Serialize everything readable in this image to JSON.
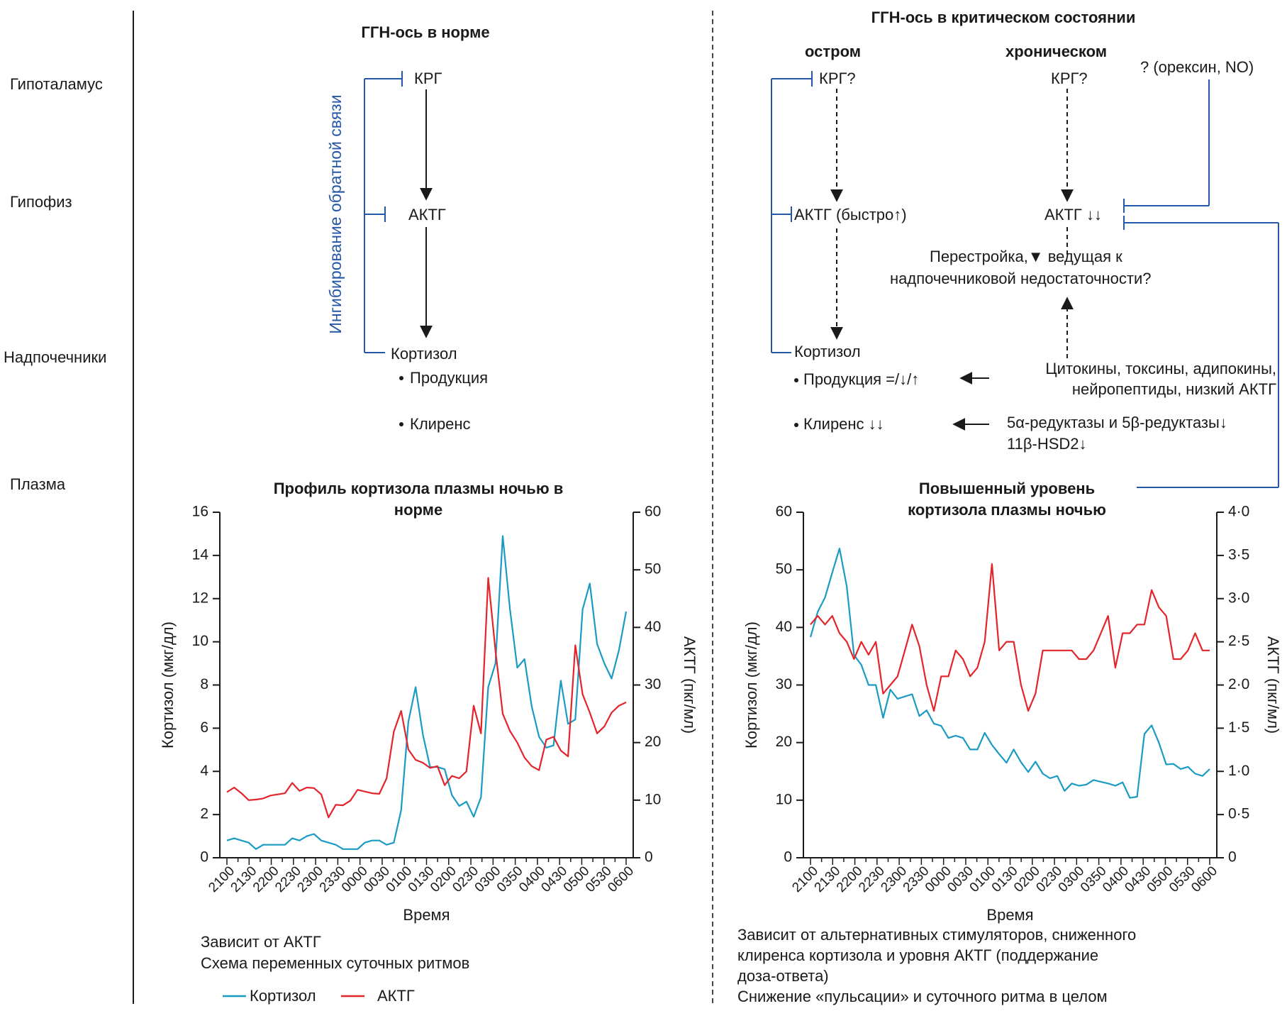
{
  "levels": {
    "hypothalamus": "Гипоталамус",
    "pituitary": "Гипофиз",
    "adrenal": "Надпочечники",
    "plasma": "Плазма"
  },
  "normal": {
    "title": "ГГН-ось в норме",
    "crg": "КРГ",
    "acth": "АКТГ",
    "cortisol": "Кортизол",
    "feedback": "Ингибирование обратной связи",
    "production": "Продукция",
    "clearance": "Клиренс"
  },
  "critical": {
    "title": "ГГН-ось в критическом состоянии",
    "acute_label": "остром",
    "chronic_label": "хроническом",
    "acute_crg": "КРГ?",
    "chronic_crg": "КРГ?",
    "orexin": "? (орексин, NO)",
    "acute_acth": "АКТГ (быстро↑)",
    "chronic_acth": "АКТГ ↓↓",
    "restructure_1": "Перестройка,▼ ведущая к",
    "restructure_2": "надпочечниковой недостаточности?",
    "cortisol": "Кортизол",
    "production": "Продукция =/↓/↑",
    "clearance": "Клиренс  ↓↓",
    "cytokines_1": "Цитокины, токсины, адипокины,",
    "cytokines_2": "нейропептиды, низкий АКТГ",
    "reductase_1": "5α-редуктазы и 5β-редуктазы↓",
    "reductase_2": "11β-HSD2↓"
  },
  "notes": {
    "left_1": "Зависит от АКТГ",
    "left_2": "Схема  переменных суточных ритмов",
    "right_1": "Зависит от альтернативных стимуляторов, сниженного",
    "right_2": "клиренса кортизола и уровня АКТГ (поддержание",
    "right_3": "доза-ответа)",
    "right_4": "Снижение «пульсации» и суточного ритма в целом"
  },
  "legend": {
    "cortisol": "Кортизол",
    "acth": "АКТГ"
  },
  "colors": {
    "cortisol": "#1a9bc4",
    "acth": "#e3242b",
    "feedback": "#2457a6",
    "axis": "#1a1a1a"
  },
  "chart_data": [
    {
      "type": "line",
      "title": "Профиль кортизола плазмы ночью в норме",
      "xlabel": "Время",
      "ylabel_left": "Кортизол (мкг/дл)",
      "ylabel_right": "АКТГ (пкг/мл)",
      "ylim_left": [
        0,
        16
      ],
      "ylim_right": [
        0,
        60
      ],
      "yticks_left": [
        "0",
        "2",
        "4",
        "6",
        "8",
        "10",
        "12",
        "14",
        "16"
      ],
      "yticks_right": [
        "0",
        "10",
        "20",
        "30",
        "40",
        "50",
        "60"
      ],
      "xticks": [
        "2100",
        "2130",
        "2200",
        "2230",
        "2300",
        "2330",
        "0000",
        "0030",
        "0100",
        "0130",
        "0200",
        "0230",
        "0300",
        "0350",
        "0400",
        "0430",
        "0500",
        "0530",
        "0600"
      ],
      "series": [
        {
          "name": "Кортизол",
          "axis": "left",
          "values": [
            0.8,
            0.9,
            0.8,
            0.7,
            0.4,
            0.6,
            0.6,
            0.6,
            0.6,
            0.9,
            0.8,
            1.0,
            1.1,
            0.8,
            0.7,
            0.6,
            0.4,
            0.4,
            0.4,
            0.7,
            0.8,
            0.8,
            0.6,
            0.7,
            2.2,
            6.3,
            7.9,
            5.7,
            4.2,
            4.2,
            4.1,
            2.9,
            2.4,
            2.6,
            1.9,
            2.8,
            7.9,
            9.0,
            14.9,
            11.5,
            8.8,
            9.2,
            7.0,
            5.6,
            5.1,
            5.2,
            8.2,
            6.2,
            6.4,
            11.5,
            12.7,
            9.9,
            9.0,
            8.3,
            9.6,
            11.4
          ]
        },
        {
          "name": "АКТГ",
          "axis": "right",
          "values": [
            11.4,
            12.2,
            11.2,
            10.0,
            10.1,
            10.3,
            10.8,
            11.0,
            11.2,
            13.0,
            11.6,
            12.2,
            12.1,
            11.0,
            7.0,
            9.2,
            9.1,
            9.9,
            11.8,
            11.5,
            11.2,
            11.1,
            13.8,
            21.9,
            25.5,
            18.8,
            17.0,
            16.5,
            15.6,
            15.9,
            12.6,
            14.2,
            13.8,
            15.0,
            26.4,
            21.6,
            48.6,
            36.0,
            25.0,
            22.0,
            20.0,
            17.4,
            15.9,
            15.2,
            20.5,
            21.0,
            18.6,
            17.6,
            36.9,
            28.4,
            25.2,
            21.6,
            22.8,
            25.2,
            26.4,
            27.0
          ]
        }
      ]
    },
    {
      "type": "line",
      "title": "Повышенный уровень кортизола плазмы ночью",
      "xlabel": "Время",
      "ylabel_left": "Кортизол (мкг/дл)",
      "ylabel_right": "АКТГ (пкг/мл)",
      "ylim_left": [
        0,
        60
      ],
      "ylim_right": [
        0,
        4.0
      ],
      "yticks_left": [
        "0",
        "10",
        "20",
        "30",
        "40",
        "50",
        "60"
      ],
      "yticks_right": [
        "0",
        "0·5",
        "1·0",
        "1·5",
        "2·0",
        "2·5",
        "3·0",
        "3·5",
        "4·0"
      ],
      "xticks": [
        "2100",
        "2130",
        "2200",
        "2230",
        "2300",
        "2330",
        "0000",
        "0030",
        "0100",
        "0130",
        "0200",
        "0230",
        "0300",
        "0350",
        "0400",
        "0430",
        "0500",
        "0530",
        "0600"
      ],
      "series": [
        {
          "name": "Кортизол",
          "axis": "left",
          "values": [
            38.3,
            42.7,
            45.2,
            49.5,
            53.7,
            47.1,
            35.2,
            33.5,
            30.0,
            30.0,
            24.3,
            29.2,
            27.6,
            28.0,
            28.4,
            24.6,
            25.6,
            23.3,
            22.9,
            20.8,
            21.2,
            20.8,
            18.8,
            18.8,
            21.7,
            19.6,
            18.0,
            16.5,
            18.8,
            16.6,
            14.9,
            16.7,
            14.6,
            13.8,
            14.2,
            11.6,
            12.9,
            12.5,
            12.7,
            13.5,
            13.2,
            12.9,
            12.5,
            13.1,
            10.4,
            10.6,
            21.5,
            23.0,
            20.0,
            16.2,
            16.3,
            15.4,
            15.8,
            14.6,
            14.2,
            15.4
          ]
        },
        {
          "name": "АКТГ",
          "axis": "right",
          "values": [
            2.7,
            2.8,
            2.7,
            2.8,
            2.6,
            2.5,
            2.3,
            2.5,
            2.35,
            2.5,
            1.9,
            2.0,
            2.1,
            2.4,
            2.7,
            2.45,
            2.0,
            1.7,
            2.1,
            2.1,
            2.4,
            2.3,
            2.1,
            2.2,
            2.5,
            3.4,
            2.4,
            2.5,
            2.5,
            2.0,
            1.7,
            1.9,
            2.4,
            2.4,
            2.4,
            2.4,
            2.4,
            2.3,
            2.3,
            2.4,
            2.6,
            2.8,
            2.2,
            2.6,
            2.6,
            2.7,
            2.7,
            3.1,
            2.9,
            2.8,
            2.3,
            2.3,
            2.4,
            2.6,
            2.4,
            2.4
          ]
        }
      ]
    }
  ]
}
